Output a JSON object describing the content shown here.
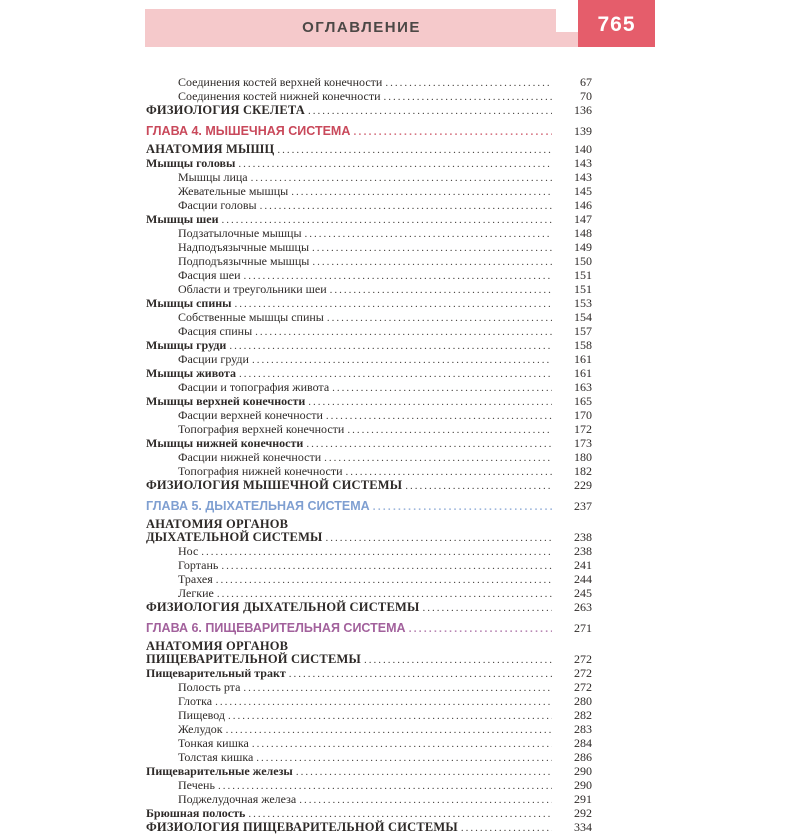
{
  "header": {
    "title": "ОГЛАВЛЕНИЕ",
    "page_number": "765",
    "bar_color": "#f5c9cb",
    "box_color": "#e55d6b"
  },
  "colors": {
    "chapter_4": "#c9495b",
    "chapter_5": "#7f9fd1",
    "chapter_6": "#a2619c",
    "body_text": "#2e2a28"
  },
  "toc": [
    {
      "type": "item",
      "label": "Соединения костей верхней конечности",
      "page": "67"
    },
    {
      "type": "item",
      "label": "Соединения костей нижней конечности",
      "page": "70"
    },
    {
      "type": "section",
      "label": "ФИЗИОЛОГИЯ СКЕЛЕТА",
      "page": "136"
    },
    {
      "type": "chapter",
      "label": "ГЛАВА 4. МЫШЕЧНАЯ СИСТЕМА",
      "page": "139",
      "color": "#c9495b"
    },
    {
      "type": "section",
      "label": "АНАТОМИЯ МЫШЦ",
      "page": "140"
    },
    {
      "type": "sub",
      "label": "Мышцы головы",
      "page": "143"
    },
    {
      "type": "item",
      "label": "Мышцы лица",
      "page": "143"
    },
    {
      "type": "item",
      "label": "Жевательные мышцы",
      "page": "145"
    },
    {
      "type": "item",
      "label": "Фасции головы",
      "page": "146"
    },
    {
      "type": "sub",
      "label": "Мышцы шеи",
      "page": "147"
    },
    {
      "type": "item",
      "label": "Подзатылочные мышцы",
      "page": "148"
    },
    {
      "type": "item",
      "label": "Надподъязычные мышцы",
      "page": "149"
    },
    {
      "type": "item",
      "label": "Подподъязычные мышцы",
      "page": "150"
    },
    {
      "type": "item",
      "label": "Фасция шеи",
      "page": "151"
    },
    {
      "type": "item",
      "label": "Области и треугольники шеи",
      "page": "151"
    },
    {
      "type": "sub",
      "label": "Мышцы спины",
      "page": "153"
    },
    {
      "type": "item",
      "label": "Собственные мышцы спины",
      "page": "154"
    },
    {
      "type": "item",
      "label": "Фасция спины",
      "page": "157"
    },
    {
      "type": "sub",
      "label": "Мышцы груди",
      "page": "158"
    },
    {
      "type": "item",
      "label": "Фасции груди",
      "page": "161"
    },
    {
      "type": "sub",
      "label": "Мышцы живота",
      "page": "161"
    },
    {
      "type": "item",
      "label": "Фасции и топография живота",
      "page": "163"
    },
    {
      "type": "sub",
      "label": "Мышцы верхней конечности",
      "page": "165"
    },
    {
      "type": "item",
      "label": "Фасции верхней конечности",
      "page": "170"
    },
    {
      "type": "item",
      "label": "Топография верхней конечности",
      "page": "172"
    },
    {
      "type": "sub",
      "label": "Мышцы нижней конечности",
      "page": "173"
    },
    {
      "type": "item",
      "label": "Фасции нижней конечности",
      "page": "180"
    },
    {
      "type": "item",
      "label": "Топография нижней конечности",
      "page": "182"
    },
    {
      "type": "section",
      "label": "ФИЗИОЛОГИЯ МЫШЕЧНОЙ СИСТЕМЫ",
      "page": "229"
    },
    {
      "type": "chapter",
      "label": "ГЛАВА 5. ДЫХАТЕЛЬНАЯ СИСТЕМА",
      "page": "237",
      "color": "#7f9fd1"
    },
    {
      "type": "section",
      "label": "АНАТОМИЯ ОРГАНОВ",
      "page": "",
      "no_leader": true
    },
    {
      "type": "section",
      "label": "ДЫХАТЕЛЬНОЙ СИСТЕМЫ",
      "page": "238"
    },
    {
      "type": "item",
      "label": "Нос",
      "page": "238"
    },
    {
      "type": "item",
      "label": "Гортань",
      "page": "241"
    },
    {
      "type": "item",
      "label": "Трахея",
      "page": "244"
    },
    {
      "type": "item",
      "label": "Легкие",
      "page": "245"
    },
    {
      "type": "section",
      "label": "ФИЗИОЛОГИЯ ДЫХАТЕЛЬНОЙ СИСТЕМЫ",
      "page": "263"
    },
    {
      "type": "chapter",
      "label": "ГЛАВА 6. ПИЩЕВАРИТЕЛЬНАЯ СИСТЕМА",
      "page": "271",
      "color": "#a2619c"
    },
    {
      "type": "section",
      "label": "АНАТОМИЯ ОРГАНОВ",
      "page": "",
      "no_leader": true
    },
    {
      "type": "section",
      "label": "ПИЩЕВАРИТЕЛЬНОЙ СИСТЕМЫ",
      "page": "272"
    },
    {
      "type": "sub",
      "label": "Пищеварительный тракт",
      "page": "272"
    },
    {
      "type": "item",
      "label": "Полость рта",
      "page": "272"
    },
    {
      "type": "item",
      "label": "Глотка",
      "page": "280"
    },
    {
      "type": "item",
      "label": "Пищевод",
      "page": "282"
    },
    {
      "type": "item",
      "label": "Желудок",
      "page": "283"
    },
    {
      "type": "item",
      "label": "Тонкая кишка",
      "page": "284"
    },
    {
      "type": "item",
      "label": "Толстая кишка",
      "page": "286"
    },
    {
      "type": "sub",
      "label": "Пищеварительные железы",
      "page": "290"
    },
    {
      "type": "item",
      "label": "Печень",
      "page": "290"
    },
    {
      "type": "item",
      "label": "Поджелудочная железа",
      "page": "291"
    },
    {
      "type": "sub",
      "label": "Брюшная полость",
      "page": "292"
    },
    {
      "type": "section",
      "label": "ФИЗИОЛОГИЯ ПИЩЕВАРИТЕЛЬНОЙ СИСТЕМЫ",
      "page": "334"
    }
  ]
}
